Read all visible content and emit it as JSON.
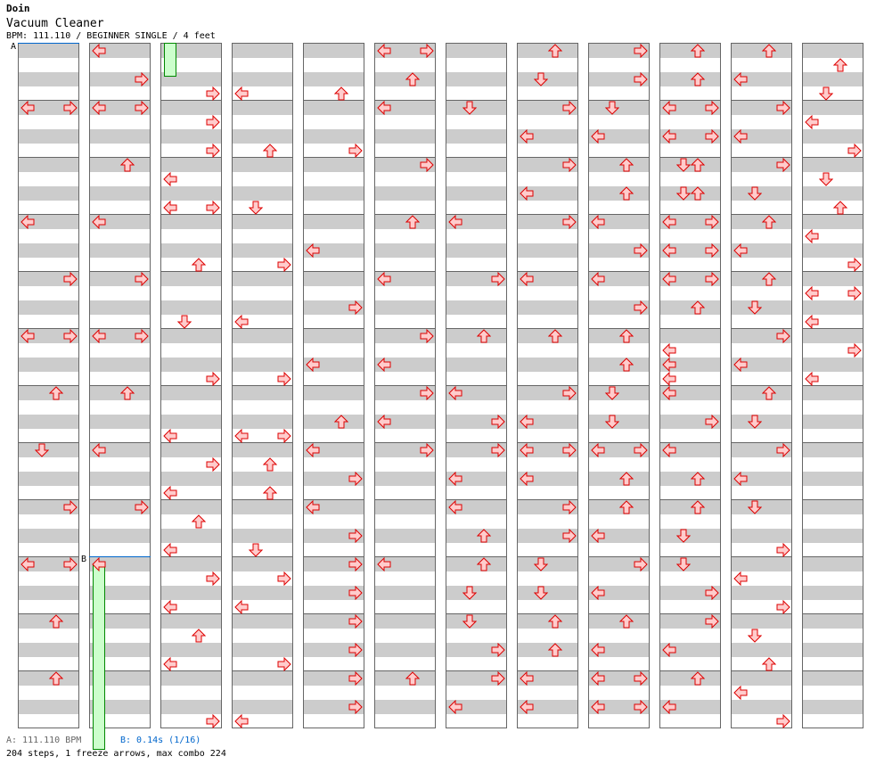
{
  "header": {
    "artist": "Doin",
    "title": "Vacuum Cleaner",
    "meta": "BPM: 111.110 / BEGINNER SINGLE / 4 feet"
  },
  "markers": {
    "a": "A",
    "b": "B"
  },
  "footer": {
    "bpm_a": "A: 111.110 BPM",
    "stop_b": "B: 0.14s (1/16)",
    "summary": "204 steps, 1 freeze arrows, max combo 224"
  },
  "colors": {
    "arrow_fill": "#ffcccc",
    "arrow_stroke": "#dd0000",
    "freeze_fill": "#ccffcc",
    "freeze_stroke": "#008800",
    "marker": "#0066cc"
  },
  "chart": {
    "beats_per_column": 48,
    "beats_per_measure": 4,
    "columns": [
      [
        "4:LR",
        "12:L",
        "16:R",
        "20:LR",
        "24:U",
        "28:D",
        "32:R",
        "36:LR",
        "40:U",
        "44:U"
      ],
      [
        "0:L",
        "2:R",
        "4:LR",
        "8:U",
        "12:L",
        "16:R",
        "20:LR",
        "24:U",
        "28:L",
        "32:R",
        "36:L"
      ],
      [
        "3:R",
        "5:R",
        "7:R",
        "9:L",
        "11:LR",
        "15:U",
        "19:D",
        "23:R",
        "27:L",
        "29:R",
        "31:L",
        "33:U",
        "35:L",
        "37:R",
        "39:L",
        "41:U",
        "43:L",
        "47:R"
      ],
      [
        "3:L",
        "7:U",
        "11:D",
        "15:R",
        "19:L",
        "23:R",
        "27:LR",
        "29:U",
        "31:U",
        "35:D",
        "37:R",
        "39:L",
        "43:R",
        "47:L"
      ],
      [
        "3:U",
        "7:R",
        "14:L",
        "18:R",
        "22:L",
        "26:U",
        "28:L",
        "30:R",
        "32:L",
        "34:R",
        "36:R",
        "38:R",
        "40:R",
        "42:R",
        "44:R",
        "46:R"
      ],
      [
        "0:LR",
        "2:U",
        "4:L",
        "8:R",
        "12:U",
        "16:L",
        "20:R",
        "22:L",
        "24:R",
        "26:L",
        "28:R",
        "36:L",
        "44:U"
      ],
      [
        "4:D",
        "12:L",
        "16:R",
        "20:U",
        "24:L",
        "26:R",
        "28:R",
        "30:L",
        "32:L",
        "34:U",
        "36:U",
        "38:D",
        "40:D",
        "42:R",
        "44:R",
        "46:L"
      ],
      [
        "0:U",
        "2:D",
        "4:R",
        "6:L",
        "8:R",
        "10:L",
        "12:R",
        "16:L",
        "20:U",
        "24:R",
        "26:L",
        "28:LR",
        "30:L",
        "32:R",
        "34:R",
        "36:D",
        "38:D",
        "40:U",
        "42:U",
        "44:L",
        "46:L"
      ],
      [
        "0:R",
        "2:R",
        "4:D",
        "6:L",
        "8:U",
        "10:U",
        "12:L",
        "14:R",
        "16:L",
        "18:R",
        "20:U",
        "22:U",
        "24:D",
        "26:D",
        "28:LR",
        "30:U",
        "32:U",
        "34:L",
        "36:R",
        "38:L",
        "40:U",
        "42:L",
        "44:LR",
        "46:LR"
      ],
      [
        "0:U",
        "2:U",
        "4:LR",
        "6:LR",
        "8:DU",
        "10:DU",
        "12:LR",
        "14:LR",
        "16:LR",
        "18:U",
        "21:L",
        "22:L",
        "23:L",
        "24:L",
        "26:R",
        "28:L",
        "30:U",
        "32:U",
        "34:D",
        "36:D",
        "38:R",
        "40:R",
        "42:L",
        "44:U",
        "46:L"
      ],
      [
        "0:U",
        "2:L",
        "4:R",
        "6:L",
        "8:R",
        "10:D",
        "12:U",
        "14:L",
        "16:U",
        "18:D",
        "20:R",
        "22:L",
        "24:U",
        "26:D",
        "28:R",
        "30:L",
        "32:D",
        "35:R",
        "37:L",
        "39:R",
        "41:D",
        "43:U",
        "45:L",
        "47:R"
      ],
      [
        "1:U",
        "3:D",
        "5:L",
        "7:R",
        "9:D",
        "11:U",
        "13:L",
        "15:R",
        "17:LR",
        "19:L",
        "21:R",
        "23:L"
      ]
    ],
    "freezes": [
      {
        "column": 1,
        "lane": "L",
        "start_beat": 36,
        "end_beat": 49.5
      },
      {
        "column": 2,
        "lane": "L",
        "start_beat": -0.5,
        "end_beat": 2.3
      }
    ]
  }
}
